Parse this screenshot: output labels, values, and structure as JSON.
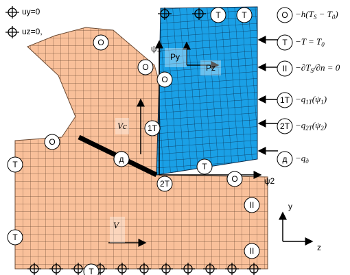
{
  "constraints": [
    "uy=0",
    "uz=0,"
  ],
  "legend": [
    {
      "symbol": "O",
      "formula": [
        "−h(T",
        "S",
        " − T",
        "0",
        ")"
      ]
    },
    {
      "symbol": "T",
      "formula": [
        "−T = T",
        "0"
      ]
    },
    {
      "symbol": "II",
      "formula": [
        "−∂T",
        "S",
        "/∂n = 0"
      ]
    },
    {
      "symbol": "1T",
      "formula": [
        "−q",
        "1T",
        "(ψ",
        "1",
        ")"
      ]
    },
    {
      "symbol": "2T",
      "formula": [
        "−q",
        "2T",
        "(ψ",
        "2",
        ")"
      ]
    },
    {
      "symbol": "д",
      "formula": [
        "−q",
        "д"
      ]
    }
  ],
  "axes": {
    "psi1": "ψ1",
    "psi2": "ψ2",
    "y": "y",
    "z": "z"
  },
  "loads": {
    "py": "Py",
    "pz": "Pz",
    "vc": "Vc",
    "v": "V"
  },
  "markers": [
    "O",
    "O",
    "O",
    "T",
    "T",
    "1T",
    "2T",
    "T",
    "O",
    "O",
    "T",
    "д",
    "II",
    "II",
    "T",
    "T"
  ]
}
